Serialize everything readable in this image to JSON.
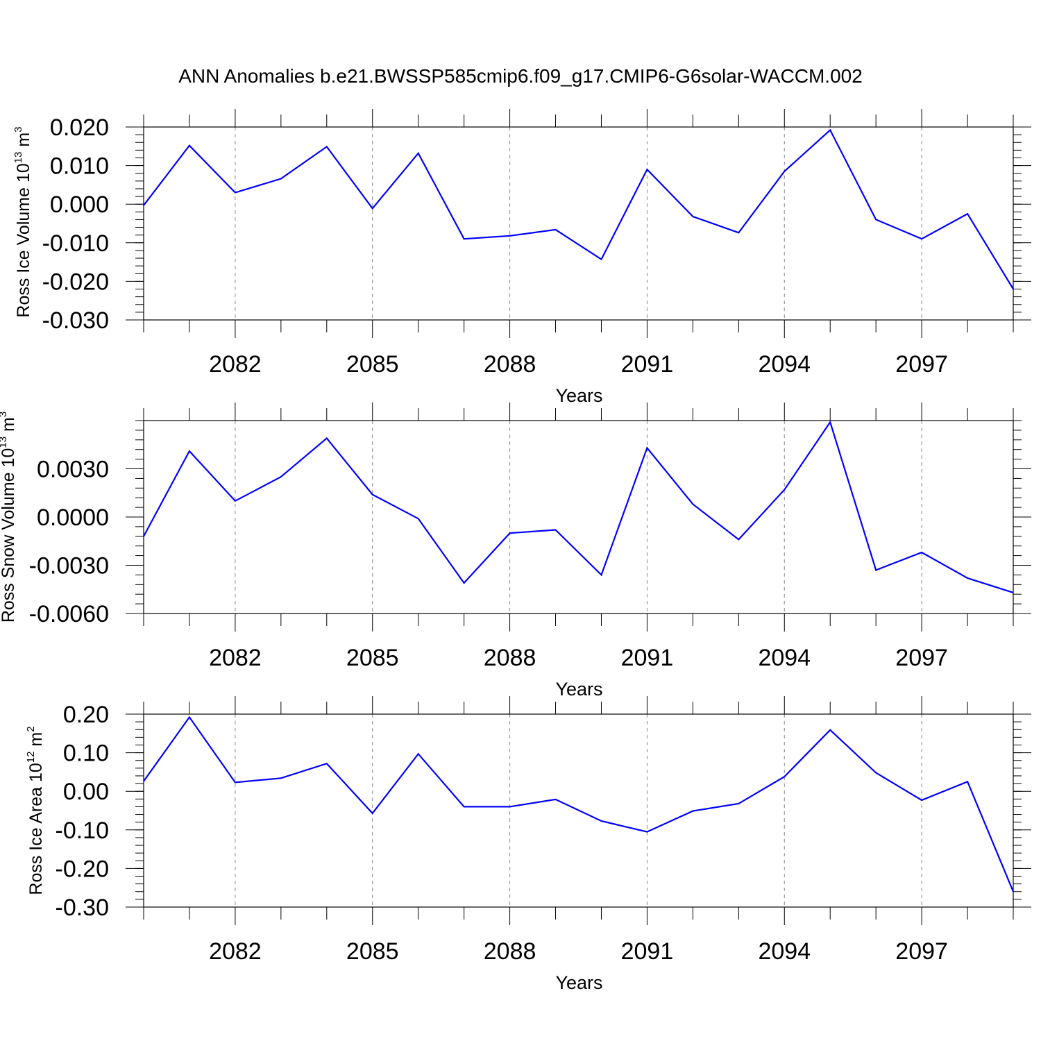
{
  "title": "ANN Anomalies b.e21.BWSSP585cmip6.f09_g17.CMIP6-G6solar-WACCM.002",
  "colors": {
    "line": "#0000ff",
    "axis": "#000000",
    "grid": "#888888"
  },
  "chart_data": [
    {
      "type": "line",
      "ylabel": "Ross Ice Volume",
      "yunit_base": "10",
      "yunit_exp": "13",
      "yunit_unit": "m",
      "yunit_unit_exp": "3",
      "xlabel": "Years",
      "xlim": [
        2080,
        2099
      ],
      "ylim": [
        -0.03,
        0.02
      ],
      "grid": "vertical dashed at labeled years",
      "xticks": [
        "2082",
        "2085",
        "2088",
        "2091",
        "2094",
        "2097"
      ],
      "yticks": [
        "0.020",
        "0.010",
        "0.000",
        "-0.010",
        "-0.020",
        "-0.030"
      ],
      "x": [
        2080,
        2081,
        2082,
        2083,
        2084,
        2085,
        2086,
        2087,
        2088,
        2089,
        2090,
        2091,
        2092,
        2093,
        2094,
        2095,
        2096,
        2097,
        2098,
        2099
      ],
      "values": [
        -0.0003,
        0.0152,
        0.003,
        0.0066,
        0.0149,
        -0.0011,
        0.0132,
        -0.009,
        -0.0082,
        -0.0066,
        -0.0143,
        0.009,
        -0.0032,
        -0.0074,
        0.0085,
        0.0192,
        -0.004,
        -0.009,
        -0.0025,
        -0.022
      ]
    },
    {
      "type": "line",
      "ylabel": "Ross Snow Volume",
      "yunit_base": "10",
      "yunit_exp": "13",
      "yunit_unit": "m",
      "yunit_unit_exp": "3",
      "xlabel": "Years",
      "xlim": [
        2080,
        2099
      ],
      "ylim": [
        -0.006,
        0.006
      ],
      "grid": "vertical dashed at labeled years",
      "xticks": [
        "2082",
        "2085",
        "2088",
        "2091",
        "2094",
        "2097"
      ],
      "yticks": [
        "0.0030",
        "0.0000",
        "-0.0030",
        "-0.0060"
      ],
      "x": [
        2080,
        2081,
        2082,
        2083,
        2084,
        2085,
        2086,
        2087,
        2088,
        2089,
        2090,
        2091,
        2092,
        2093,
        2094,
        2095,
        2096,
        2097,
        2098,
        2099
      ],
      "values": [
        -0.0012,
        0.0041,
        0.001,
        0.0025,
        0.0049,
        0.0014,
        -0.0001,
        -0.0041,
        -0.001,
        -0.0008,
        -0.0036,
        0.0043,
        0.0008,
        -0.0014,
        0.0017,
        0.0059,
        -0.0033,
        -0.0022,
        -0.0038,
        -0.0047
      ]
    },
    {
      "type": "line",
      "ylabel": "Ross Ice Area",
      "yunit_base": "10",
      "yunit_exp": "12",
      "yunit_unit": "m",
      "yunit_unit_exp": "2",
      "xlabel": "Years",
      "xlim": [
        2080,
        2099
      ],
      "ylim": [
        -0.3,
        0.2
      ],
      "grid": "vertical dashed at labeled years",
      "xticks": [
        "2082",
        "2085",
        "2088",
        "2091",
        "2094",
        "2097"
      ],
      "yticks": [
        "0.20",
        "0.10",
        "0.00",
        "-0.10",
        "-0.20",
        "-0.30"
      ],
      "x": [
        2080,
        2081,
        2082,
        2083,
        2084,
        2085,
        2086,
        2087,
        2088,
        2089,
        2090,
        2091,
        2092,
        2093,
        2094,
        2095,
        2096,
        2097,
        2098,
        2099
      ],
      "values": [
        0.026,
        0.192,
        0.023,
        0.034,
        0.072,
        -0.057,
        0.097,
        -0.04,
        -0.04,
        -0.021,
        -0.077,
        -0.105,
        -0.051,
        -0.032,
        0.038,
        0.159,
        0.048,
        -0.023,
        0.025,
        -0.26
      ]
    }
  ]
}
